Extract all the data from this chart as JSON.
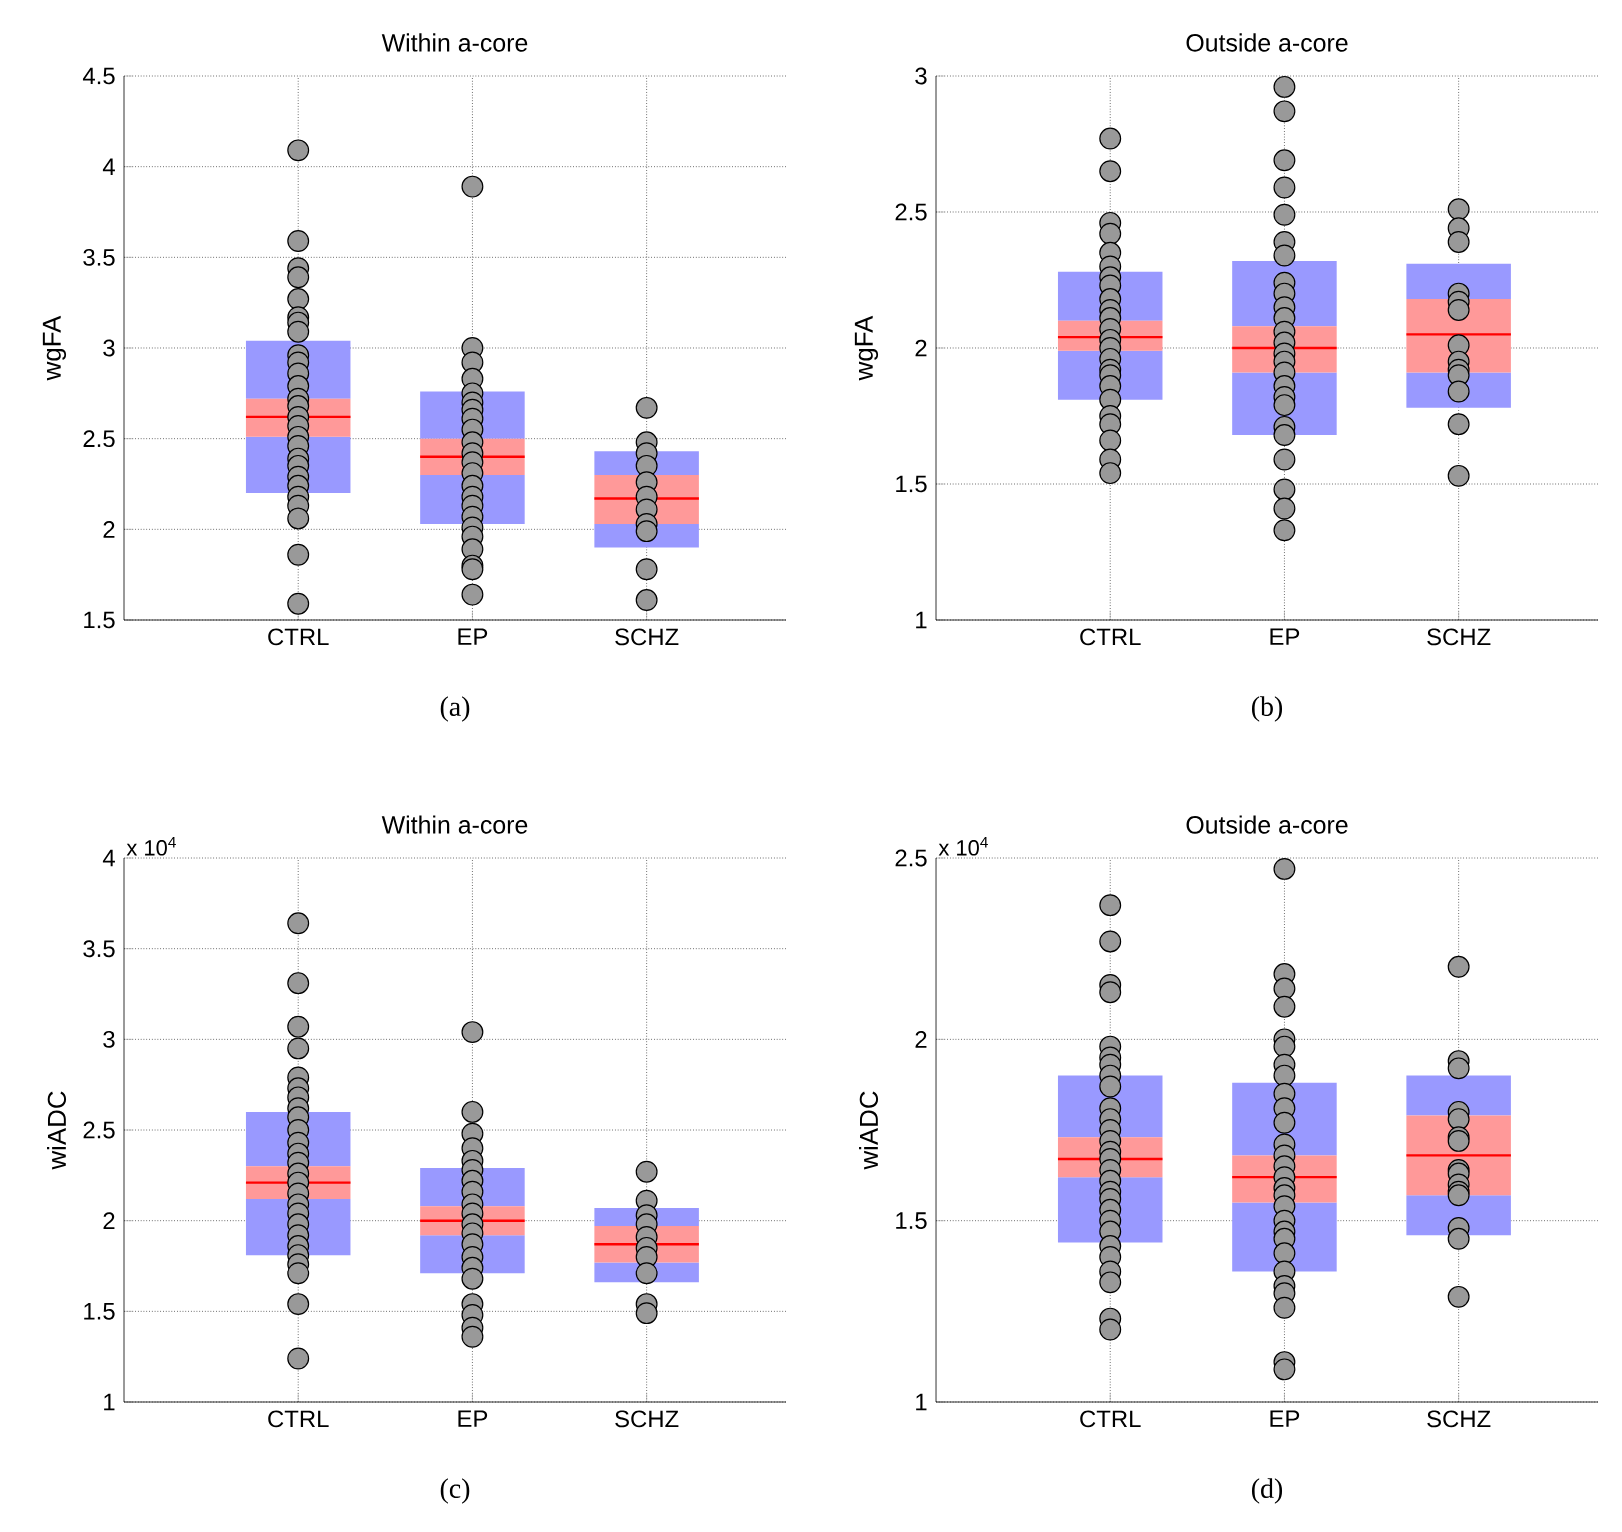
{
  "chart_data": [
    {
      "type": "box",
      "title": "Within a-core",
      "ylabel": "wgFA",
      "categories": [
        "CTRL",
        "EP",
        "SCHZ"
      ],
      "ylim": [
        1.5,
        4.5
      ],
      "yticks": [
        1.5,
        2,
        2.5,
        3,
        3.5,
        4,
        4.5
      ],
      "grid": true,
      "boxes": [
        {
          "low": 2.2,
          "q1": 2.51,
          "median": 2.62,
          "q3": 2.72,
          "high": 3.04
        },
        {
          "low": 2.03,
          "q1": 2.3,
          "median": 2.4,
          "q3": 2.5,
          "high": 2.76
        },
        {
          "low": 1.9,
          "q1": 2.03,
          "median": 2.17,
          "q3": 2.3,
          "high": 2.43
        }
      ],
      "series": [
        {
          "type": "scatter",
          "color": "#999999",
          "marker": "circle",
          "x": [
            "CTRL",
            "CTRL",
            "CTRL",
            "CTRL",
            "CTRL",
            "CTRL",
            "CTRL",
            "CTRL",
            "CTRL",
            "CTRL",
            "CTRL",
            "CTRL",
            "CTRL",
            "CTRL",
            "CTRL",
            "CTRL",
            "CTRL",
            "CTRL",
            "CTRL",
            "CTRL",
            "CTRL",
            "CTRL",
            "CTRL",
            "CTRL",
            "CTRL",
            "CTRL",
            "CTRL",
            "EP",
            "EP",
            "EP",
            "EP",
            "EP",
            "EP",
            "EP",
            "EP",
            "EP",
            "EP",
            "EP",
            "EP",
            "EP",
            "EP",
            "EP",
            "EP",
            "EP",
            "EP",
            "EP",
            "EP",
            "EP",
            "EP",
            "EP",
            "SCHZ",
            "SCHZ",
            "SCHZ",
            "SCHZ",
            "SCHZ",
            "SCHZ",
            "SCHZ",
            "SCHZ",
            "SCHZ",
            "SCHZ",
            "SCHZ"
          ],
          "values": [
            4.09,
            3.59,
            3.44,
            3.39,
            3.27,
            3.17,
            3.14,
            3.09,
            2.96,
            2.92,
            2.86,
            2.79,
            2.72,
            2.68,
            2.62,
            2.57,
            2.51,
            2.46,
            2.39,
            2.35,
            2.29,
            2.24,
            2.18,
            2.13,
            2.06,
            1.86,
            1.59,
            3.89,
            3.0,
            2.92,
            2.83,
            2.75,
            2.7,
            2.66,
            2.61,
            2.55,
            2.48,
            2.42,
            2.37,
            2.31,
            2.24,
            2.18,
            2.13,
            2.07,
            2.01,
            1.96,
            1.89,
            1.8,
            1.78,
            1.64,
            2.67,
            2.48,
            2.42,
            2.35,
            2.26,
            2.18,
            2.11,
            2.03,
            1.99,
            1.78,
            1.61
          ]
        }
      ],
      "annotations": [
        "(a)"
      ]
    },
    {
      "type": "box",
      "title": "Outside a-core",
      "ylabel": "wgFA",
      "categories": [
        "CTRL",
        "EP",
        "SCHZ"
      ],
      "ylim": [
        1,
        3
      ],
      "yticks": [
        1,
        1.5,
        2,
        2.5,
        3
      ],
      "grid": true,
      "boxes": [
        {
          "low": 1.81,
          "q1": 1.99,
          "median": 2.04,
          "q3": 2.1,
          "high": 2.28
        },
        {
          "low": 1.68,
          "q1": 1.91,
          "median": 2.0,
          "q3": 2.08,
          "high": 2.32
        },
        {
          "low": 1.78,
          "q1": 1.91,
          "median": 2.05,
          "q3": 2.18,
          "high": 2.31
        }
      ],
      "series": [
        {
          "type": "scatter",
          "color": "#999999",
          "marker": "circle",
          "x": [
            "CTRL",
            "CTRL",
            "CTRL",
            "CTRL",
            "CTRL",
            "CTRL",
            "CTRL",
            "CTRL",
            "CTRL",
            "CTRL",
            "CTRL",
            "CTRL",
            "CTRL",
            "CTRL",
            "CTRL",
            "CTRL",
            "CTRL",
            "CTRL",
            "CTRL",
            "CTRL",
            "CTRL",
            "CTRL",
            "CTRL",
            "CTRL",
            "EP",
            "EP",
            "EP",
            "EP",
            "EP",
            "EP",
            "EP",
            "EP",
            "EP",
            "EP",
            "EP",
            "EP",
            "EP",
            "EP",
            "EP",
            "EP",
            "EP",
            "EP",
            "EP",
            "EP",
            "EP",
            "EP",
            "EP",
            "EP",
            "EP",
            "SCHZ",
            "SCHZ",
            "SCHZ",
            "SCHZ",
            "SCHZ",
            "SCHZ",
            "SCHZ",
            "SCHZ",
            "SCHZ",
            "SCHZ",
            "SCHZ",
            "SCHZ",
            "SCHZ"
          ],
          "values": [
            2.77,
            2.65,
            2.46,
            2.42,
            2.35,
            2.3,
            2.26,
            2.23,
            2.18,
            2.14,
            2.11,
            2.07,
            2.03,
            2.0,
            1.96,
            1.92,
            1.9,
            1.86,
            1.81,
            1.75,
            1.72,
            1.66,
            1.59,
            1.54,
            2.96,
            2.87,
            2.69,
            2.59,
            2.49,
            2.39,
            2.34,
            2.24,
            2.2,
            2.15,
            2.11,
            2.06,
            2.02,
            1.98,
            1.95,
            1.91,
            1.86,
            1.82,
            1.79,
            1.71,
            1.68,
            1.59,
            1.48,
            1.41,
            1.33,
            2.51,
            2.44,
            2.39,
            2.2,
            2.17,
            2.14,
            2.01,
            1.95,
            1.92,
            1.9,
            1.84,
            1.72,
            1.53
          ]
        }
      ],
      "annotations": [
        "(b)"
      ]
    },
    {
      "type": "box",
      "title": "Within a-core",
      "ylabel": "wiADC",
      "categories": [
        "CTRL",
        "EP",
        "SCHZ"
      ],
      "ylim": [
        1,
        4
      ],
      "yticks": [
        1,
        1.5,
        2,
        2.5,
        3,
        3.5,
        4
      ],
      "grid": true,
      "boxes": [
        {
          "low": 1.81,
          "q1": 2.12,
          "median": 2.21,
          "q3": 2.3,
          "high": 2.6
        },
        {
          "low": 1.71,
          "q1": 1.92,
          "median": 2.0,
          "q3": 2.08,
          "high": 2.29
        },
        {
          "low": 1.66,
          "q1": 1.77,
          "median": 1.87,
          "q3": 1.97,
          "high": 2.07
        }
      ],
      "series": [
        {
          "type": "scatter",
          "color": "#999999",
          "marker": "circle",
          "x": [
            "CTRL",
            "CTRL",
            "CTRL",
            "CTRL",
            "CTRL",
            "CTRL",
            "CTRL",
            "CTRL",
            "CTRL",
            "CTRL",
            "CTRL",
            "CTRL",
            "CTRL",
            "CTRL",
            "CTRL",
            "CTRL",
            "CTRL",
            "CTRL",
            "CTRL",
            "CTRL",
            "CTRL",
            "CTRL",
            "CTRL",
            "CTRL",
            "CTRL",
            "CTRL",
            "EP",
            "EP",
            "EP",
            "EP",
            "EP",
            "EP",
            "EP",
            "EP",
            "EP",
            "EP",
            "EP",
            "EP",
            "EP",
            "EP",
            "EP",
            "EP",
            "EP",
            "EP",
            "EP",
            "EP",
            "SCHZ",
            "SCHZ",
            "SCHZ",
            "SCHZ",
            "SCHZ",
            "SCHZ",
            "SCHZ",
            "SCHZ",
            "SCHZ",
            "SCHZ"
          ],
          "values": [
            3.64,
            3.31,
            3.07,
            2.95,
            2.79,
            2.73,
            2.68,
            2.62,
            2.57,
            2.5,
            2.43,
            2.37,
            2.32,
            2.26,
            2.21,
            2.15,
            2.09,
            2.04,
            1.98,
            1.92,
            1.86,
            1.81,
            1.76,
            1.71,
            1.54,
            1.24,
            3.04,
            2.6,
            2.48,
            2.4,
            2.33,
            2.28,
            2.22,
            2.16,
            2.09,
            2.04,
            1.98,
            1.93,
            1.87,
            1.8,
            1.74,
            1.68,
            1.54,
            1.48,
            1.41,
            1.36,
            2.27,
            2.11,
            2.03,
            1.98,
            1.91,
            1.85,
            1.8,
            1.71,
            1.54,
            1.49
          ]
        }
      ],
      "annotations": [
        "x 10$^{4}$",
        "(c)"
      ]
    },
    {
      "type": "box",
      "title": "Outside a-core",
      "ylabel": "wiADC",
      "categories": [
        "CTRL",
        "EP",
        "SCHZ"
      ],
      "ylim": [
        1,
        2.5
      ],
      "yticks": [
        1,
        1.5,
        2,
        2.5
      ],
      "grid": true,
      "boxes": [
        {
          "low": 1.44,
          "q1": 1.62,
          "median": 1.67,
          "q3": 1.73,
          "high": 1.9
        },
        {
          "low": 1.36,
          "q1": 1.55,
          "median": 1.62,
          "q3": 1.68,
          "high": 1.88
        },
        {
          "low": 1.46,
          "q1": 1.57,
          "median": 1.68,
          "q3": 1.79,
          "high": 1.9
        }
      ],
      "series": [
        {
          "type": "scatter",
          "color": "#999999",
          "marker": "circle",
          "x": [
            "CTRL",
            "CTRL",
            "CTRL",
            "CTRL",
            "CTRL",
            "CTRL",
            "CTRL",
            "CTRL",
            "CTRL",
            "CTRL",
            "CTRL",
            "CTRL",
            "CTRL",
            "CTRL",
            "CTRL",
            "CTRL",
            "CTRL",
            "CTRL",
            "CTRL",
            "CTRL",
            "CTRL",
            "CTRL",
            "CTRL",
            "CTRL",
            "CTRL",
            "CTRL",
            "CTRL",
            "CTRL",
            "EP",
            "EP",
            "EP",
            "EP",
            "EP",
            "EP",
            "EP",
            "EP",
            "EP",
            "EP",
            "EP",
            "EP",
            "EP",
            "EP",
            "EP",
            "EP",
            "EP",
            "EP",
            "EP",
            "EP",
            "EP",
            "EP",
            "EP",
            "EP",
            "EP",
            "EP",
            "EP",
            "EP",
            "SCHZ",
            "SCHZ",
            "SCHZ",
            "SCHZ",
            "SCHZ",
            "SCHZ",
            "SCHZ",
            "SCHZ",
            "SCHZ",
            "SCHZ",
            "SCHZ",
            "SCHZ",
            "SCHZ",
            "SCHZ",
            "SCHZ"
          ],
          "values": [
            2.37,
            2.27,
            2.15,
            2.13,
            1.98,
            1.95,
            1.93,
            1.9,
            1.87,
            1.81,
            1.78,
            1.75,
            1.72,
            1.69,
            1.67,
            1.64,
            1.61,
            1.58,
            1.56,
            1.53,
            1.5,
            1.47,
            1.43,
            1.4,
            1.36,
            1.33,
            1.23,
            1.2,
            2.47,
            2.18,
            2.14,
            2.09,
            2.0,
            1.98,
            1.93,
            1.9,
            1.85,
            1.81,
            1.77,
            1.71,
            1.68,
            1.65,
            1.62,
            1.59,
            1.57,
            1.54,
            1.5,
            1.47,
            1.45,
            1.41,
            1.36,
            1.32,
            1.3,
            1.26,
            1.11,
            1.09,
            2.2,
            1.94,
            1.92,
            1.8,
            1.78,
            1.73,
            1.72,
            1.64,
            1.63,
            1.6,
            1.58,
            1.57,
            1.48,
            1.45,
            1.29
          ]
        }
      ],
      "annotations": [
        "x 10$^{4}$",
        "(d)"
      ]
    }
  ]
}
